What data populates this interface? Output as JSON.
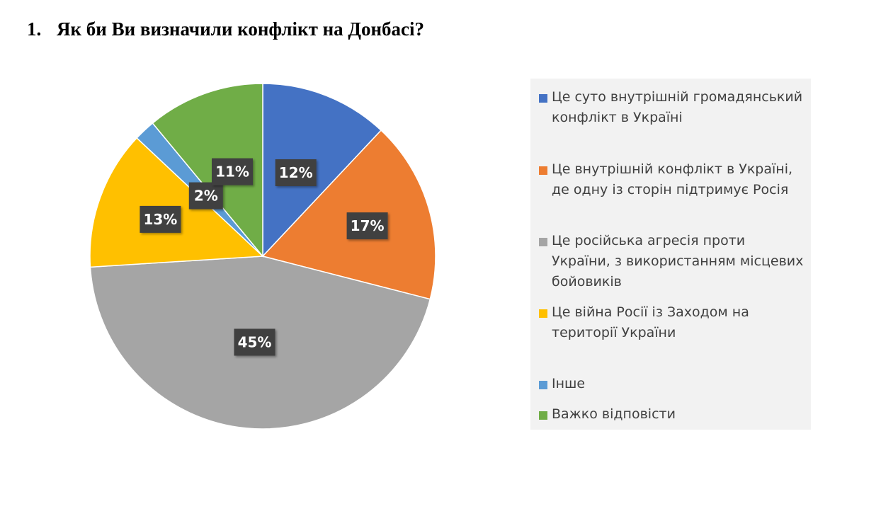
{
  "title": {
    "number": "1.",
    "text": "Як би Ви визначили конфлікт на Донбасі?"
  },
  "chart_data": {
    "type": "pie",
    "start": "12 o'clock, clockwise",
    "legend_position": "right",
    "slices": [
      {
        "label": "Це суто внутрішній громадянський конфлікт в Україні",
        "value": 12,
        "data_label": "12%",
        "color": "#4472c4"
      },
      {
        "label": "Це внутрішній конфлікт в Україні, де одну із сторін підтримує Росія",
        "value": 17,
        "data_label": "17%",
        "color": "#ed7d31"
      },
      {
        "label": "Це російська агресія проти України, з використанням місцевих бойовиків",
        "value": 45,
        "data_label": "45%",
        "color": "#a5a5a5"
      },
      {
        "label": "Це війна Росії із Заходом на території України",
        "value": 13,
        "data_label": "13%",
        "color": "#ffc000"
      },
      {
        "label": "Інше",
        "value": 2,
        "data_label": "2%",
        "color": "#5b9bd5"
      },
      {
        "label": "Важко відповісти",
        "value": 11,
        "data_label": "11%",
        "color": "#70ad47"
      }
    ]
  }
}
